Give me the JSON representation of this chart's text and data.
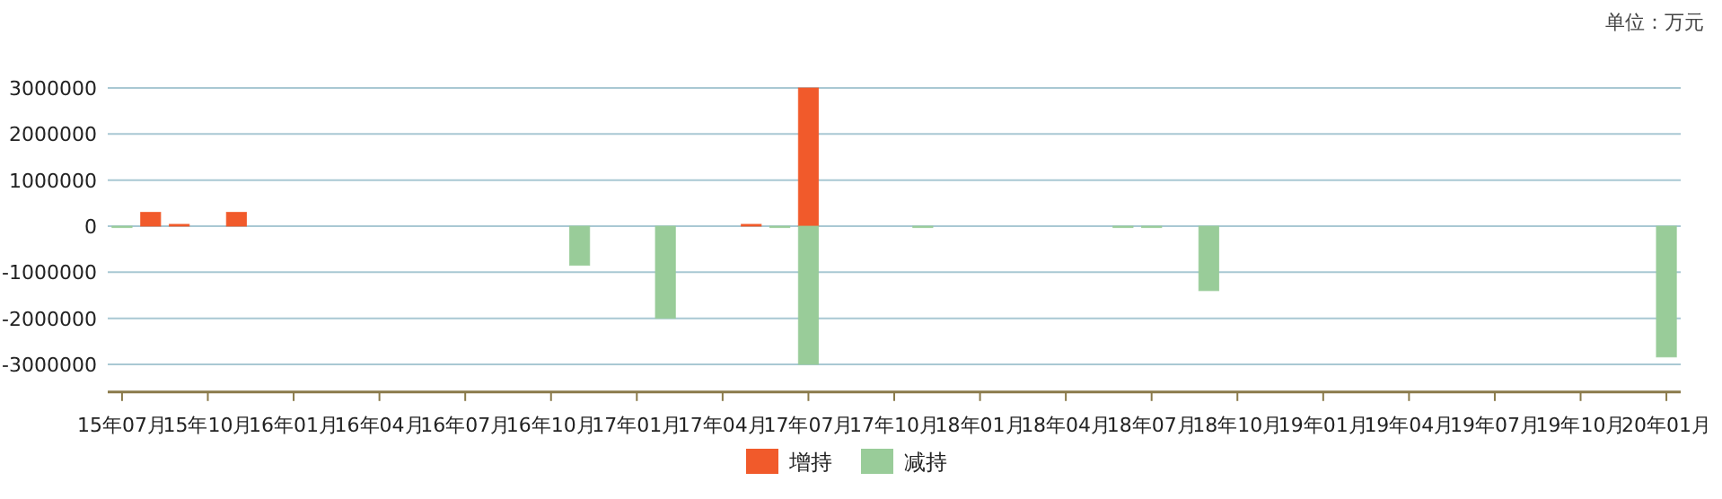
{
  "chart_data": {
    "type": "bar",
    "categories": [
      "15年07月",
      null,
      null,
      "15年10月",
      null,
      null,
      "16年01月",
      null,
      null,
      "16年04月",
      null,
      null,
      "16年07月",
      null,
      null,
      "16年10月",
      null,
      null,
      "17年01月",
      null,
      null,
      "17年04月",
      null,
      null,
      "17年07月",
      null,
      null,
      "17年10月",
      null,
      null,
      "18年01月",
      null,
      null,
      "18年04月",
      null,
      null,
      "18年07月",
      null,
      null,
      "18年10月",
      null,
      null,
      "19年01月",
      null,
      null,
      "19年04月",
      null,
      null,
      "19年07月",
      null,
      null,
      "19年10月",
      null,
      null,
      "20年01月"
    ],
    "series": [
      {
        "name": "增持",
        "color": "#f15a2b",
        "values": [
          null,
          300000,
          40000,
          null,
          300000,
          null,
          null,
          null,
          null,
          null,
          null,
          null,
          null,
          null,
          null,
          null,
          null,
          null,
          null,
          null,
          null,
          null,
          40000,
          null,
          3000000,
          null,
          null,
          null,
          null,
          null,
          null,
          null,
          null,
          null,
          null,
          null,
          null,
          null,
          null,
          null,
          null,
          null,
          null,
          null,
          null,
          null,
          null,
          null,
          null,
          null,
          null,
          null,
          null,
          null,
          null
        ]
      },
      {
        "name": "减持",
        "color": "#99cc99",
        "values": [
          -20000,
          null,
          null,
          null,
          null,
          null,
          null,
          null,
          null,
          null,
          null,
          null,
          null,
          null,
          null,
          null,
          -850000,
          null,
          null,
          -2000000,
          null,
          null,
          null,
          -20000,
          -3000000,
          null,
          null,
          null,
          -20000,
          null,
          null,
          null,
          null,
          null,
          null,
          -20000,
          -20000,
          null,
          -1400000,
          null,
          null,
          null,
          null,
          null,
          null,
          null,
          null,
          null,
          null,
          null,
          null,
          null,
          null,
          null,
          -2840000
        ]
      }
    ],
    "ylim": [
      -3600000,
      3000000
    ],
    "yticks": [
      -3000000,
      -2000000,
      -1000000,
      0,
      1000000,
      2000000,
      3000000
    ],
    "grid": "y",
    "legend": "bottom",
    "annotations": [
      "单位：万元"
    ]
  }
}
